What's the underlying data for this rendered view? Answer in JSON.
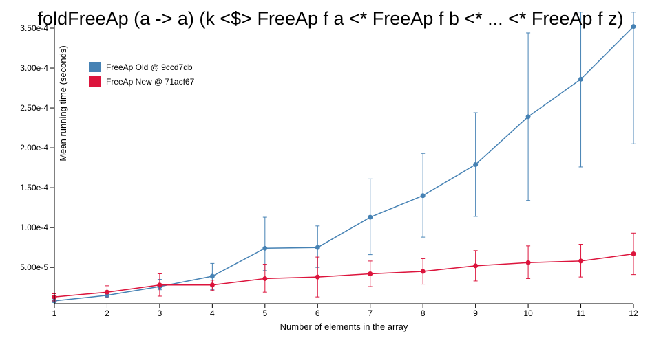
{
  "chart_data": {
    "type": "line",
    "title": "foldFreeAp (a -> a) (k <$> FreeAp f a <* FreeAp f b <* ... <* FreeAp f z)",
    "xlabel": "Number of elements in the array",
    "ylabel": "Mean running time (seconds)",
    "x": [
      1,
      2,
      3,
      4,
      5,
      6,
      7,
      8,
      9,
      10,
      11,
      12
    ],
    "xlim": [
      1,
      12
    ],
    "ylim": [
      4.5e-06,
      0.00035
    ],
    "yticks": [
      5e-05,
      0.0001,
      0.00015,
      0.0002,
      0.00025,
      0.0003,
      0.00035
    ],
    "ytick_labels": [
      "5.00e-5",
      "1.00e-4",
      "1.50e-4",
      "2.00e-4",
      "2.50e-4",
      "3.00e-4",
      "3.50e-4"
    ],
    "xtick_labels": [
      "1",
      "2",
      "3",
      "4",
      "5",
      "6",
      "7",
      "8",
      "9",
      "10",
      "11",
      "12"
    ],
    "grid": false,
    "legend_position": "top-left",
    "series": [
      {
        "name": "FreeAp Old @ 9ccd7db",
        "color": "#4682b4",
        "values": [
          8e-06,
          1.5e-05,
          2.6e-05,
          3.9e-05,
          7.4e-05,
          7.5e-05,
          0.000113,
          0.00014,
          0.000179,
          0.000239,
          0.000286,
          0.000352
        ],
        "err_low": [
          6e-06,
          1.2e-05,
          2.2e-05,
          2.2e-05,
          4.6e-05,
          5e-05,
          6.6e-05,
          8.8e-05,
          0.000114,
          0.000134,
          0.000176,
          0.000205
        ],
        "err_high": [
          1.1e-05,
          1.9e-05,
          3.5e-05,
          5.5e-05,
          0.000113,
          0.000102,
          0.000161,
          0.000193,
          0.000244,
          0.000344,
          0.00037,
          0.00037
        ]
      },
      {
        "name": "FreeAp New @ 71acf67",
        "color": "#dc143c",
        "values": [
          1.3e-05,
          1.9e-05,
          2.8e-05,
          2.8e-05,
          3.6e-05,
          3.8e-05,
          4.2e-05,
          4.5e-05,
          5.2e-05,
          5.6e-05,
          5.8e-05,
          6.7e-05
        ],
        "err_low": [
          8e-06,
          1.2e-05,
          1.4e-05,
          2.1e-05,
          1.9e-05,
          1.3e-05,
          2.6e-05,
          2.9e-05,
          3.3e-05,
          3.6e-05,
          3.8e-05,
          4.1e-05
        ],
        "err_high": [
          1.7e-05,
          2.7e-05,
          4.2e-05,
          3.4e-05,
          5.4e-05,
          6.3e-05,
          5.8e-05,
          6.1e-05,
          7.1e-05,
          7.7e-05,
          7.9e-05,
          9.3e-05
        ]
      }
    ]
  }
}
